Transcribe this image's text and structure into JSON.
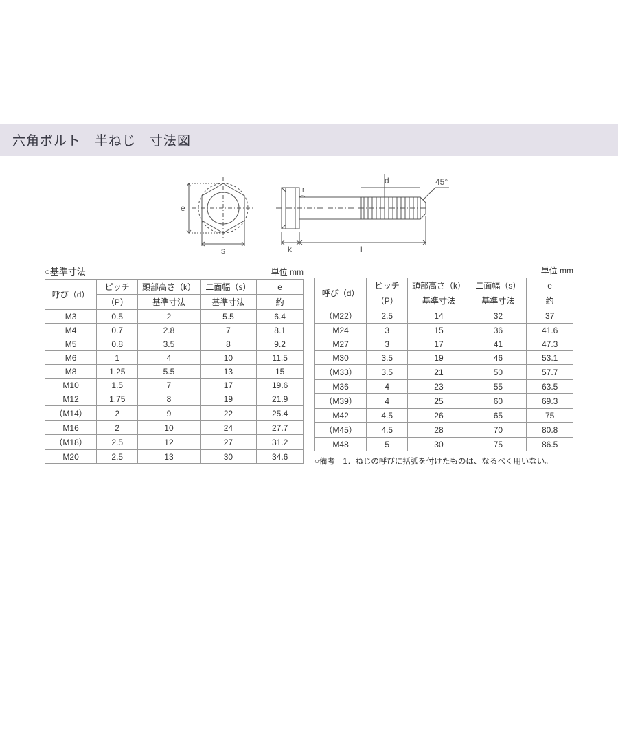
{
  "title": "六角ボルト　半ねじ　寸法図",
  "diagram": {
    "labels": {
      "e": "e",
      "s": "s",
      "k": "k",
      "l": "l",
      "d": "d",
      "r": "r",
      "angle": "45°"
    },
    "stroke_color": "#555555",
    "line_width": 1
  },
  "unit_text": "単位 mm",
  "table_caption": "○基準寸法",
  "headers": {
    "yobi": "呼び（d）",
    "pitch": "ピッチ",
    "pitch_sub": "（P）",
    "head_h": "頭部高さ（k）",
    "head_h_sub": "基準寸法",
    "width": "二面幅（s）",
    "width_sub": "基準寸法",
    "e": "e",
    "e_sub": "約"
  },
  "table_left": [
    [
      "M3",
      "0.5",
      "2",
      "5.5",
      "6.4"
    ],
    [
      "M4",
      "0.7",
      "2.8",
      "7",
      "8.1"
    ],
    [
      "M5",
      "0.8",
      "3.5",
      "8",
      "9.2"
    ],
    [
      "M6",
      "1",
      "4",
      "10",
      "11.5"
    ],
    [
      "M8",
      "1.25",
      "5.5",
      "13",
      "15"
    ],
    [
      "M10",
      "1.5",
      "7",
      "17",
      "19.6"
    ],
    [
      "M12",
      "1.75",
      "8",
      "19",
      "21.9"
    ],
    [
      "（M14）",
      "2",
      "9",
      "22",
      "25.4"
    ],
    [
      "M16",
      "2",
      "10",
      "24",
      "27.7"
    ],
    [
      "（M18）",
      "2.5",
      "12",
      "27",
      "31.2"
    ],
    [
      "M20",
      "2.5",
      "13",
      "30",
      "34.6"
    ]
  ],
  "table_right": [
    [
      "（M22）",
      "2.5",
      "14",
      "32",
      "37"
    ],
    [
      "M24",
      "3",
      "15",
      "36",
      "41.6"
    ],
    [
      "M27",
      "3",
      "17",
      "41",
      "47.3"
    ],
    [
      "M30",
      "3.5",
      "19",
      "46",
      "53.1"
    ],
    [
      "（M33）",
      "3.5",
      "21",
      "50",
      "57.7"
    ],
    [
      "M36",
      "4",
      "23",
      "55",
      "63.5"
    ],
    [
      "（M39）",
      "4",
      "25",
      "60",
      "69.3"
    ],
    [
      "M42",
      "4.5",
      "26",
      "65",
      "75"
    ],
    [
      "（M45）",
      "4.5",
      "28",
      "70",
      "80.8"
    ],
    [
      "M48",
      "5",
      "30",
      "75",
      "86.5"
    ]
  ],
  "footnote": "○備考　1．ねじの呼びに括弧を付けたものは、なるべく用いない。",
  "colors": {
    "title_bg": "#e4e1ea",
    "title_text": "#3a3a45",
    "border": "#9a9a9a",
    "text": "#333333",
    "bg": "#ffffff"
  },
  "col_widths": [
    "20%",
    "16%",
    "24%",
    "20%",
    "16%"
  ]
}
